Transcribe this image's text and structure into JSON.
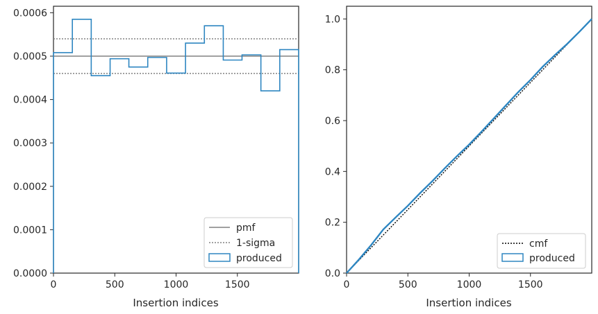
{
  "colors": {
    "produced": "#2e86c1",
    "pmf": "#808080",
    "sigma": "#808080",
    "cmf": "#000000",
    "axes": "#262626"
  },
  "chart_data": [
    {
      "type": "step",
      "xlabel": "Insertion indices",
      "ylabel": "",
      "xlim": [
        0,
        2000
      ],
      "ylim": [
        0,
        0.000615
      ],
      "xticks": [
        0,
        500,
        1000,
        1500
      ],
      "xtick_labels": [
        "0",
        "500",
        "1000",
        "1500"
      ],
      "yticks": [
        0,
        0.0001,
        0.0002,
        0.0003,
        0.0004,
        0.0005,
        0.0006
      ],
      "ytick_labels": [
        "0.0000",
        "0.0001",
        "0.0002",
        "0.0003",
        "0.0004",
        "0.0005",
        "0.0006"
      ],
      "legend_position": "bottom-right",
      "pmf": 0.0005,
      "sigma": [
        0.00046,
        0.00054
      ],
      "bin_edges": [
        0,
        154,
        308,
        462,
        615,
        769,
        923,
        1077,
        1231,
        1385,
        1538,
        1692,
        1846,
        2000
      ],
      "produced": [
        0.000508,
        0.000585,
        0.000455,
        0.000494,
        0.000475,
        0.000497,
        0.000461,
        0.00053,
        0.00057,
        0.000491,
        0.000503,
        0.00042,
        0.000515
      ],
      "legend": {
        "pmf": "pmf",
        "sigma": "1-sigma",
        "produced": "produced"
      }
    },
    {
      "type": "line",
      "xlabel": "Insertion indices",
      "ylabel": "",
      "xlim": [
        0,
        2000
      ],
      "ylim": [
        0,
        1.05
      ],
      "xticks": [
        0,
        500,
        1000,
        1500
      ],
      "xtick_labels": [
        "0",
        "500",
        "1000",
        "1500"
      ],
      "yticks": [
        0,
        0.2,
        0.4,
        0.6,
        0.8,
        1.0
      ],
      "ytick_labels": [
        "0.0",
        "0.2",
        "0.4",
        "0.6",
        "0.8",
        "1.0"
      ],
      "legend_position": "bottom-right",
      "cmf": {
        "x": [
          0,
          2000
        ],
        "y": [
          0,
          1.0
        ]
      },
      "produced": {
        "x": [
          0,
          100,
          200,
          300,
          400,
          500,
          600,
          700,
          800,
          900,
          1000,
          1100,
          1200,
          1300,
          1400,
          1500,
          1600,
          1700,
          1800,
          1900,
          2000
        ],
        "y": [
          0,
          0.053,
          0.11,
          0.172,
          0.219,
          0.265,
          0.315,
          0.362,
          0.412,
          0.46,
          0.506,
          0.556,
          0.608,
          0.66,
          0.712,
          0.76,
          0.812,
          0.858,
          0.902,
          0.95,
          1.0
        ]
      },
      "legend": {
        "cmf": "cmf",
        "produced": "produced"
      }
    }
  ]
}
